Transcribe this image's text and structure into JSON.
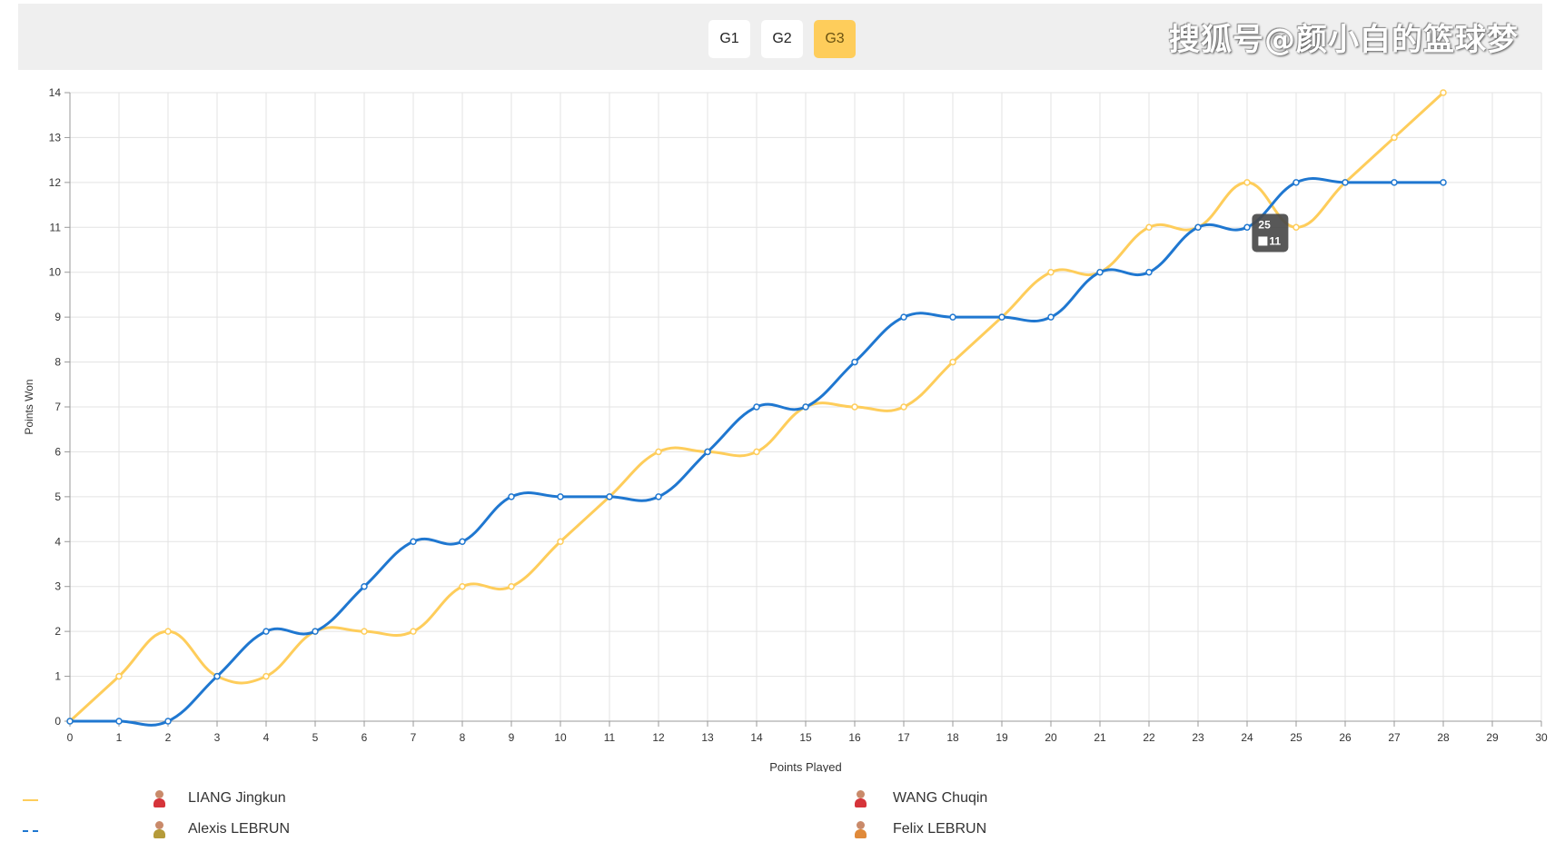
{
  "tabs": {
    "buttons": [
      {
        "label": "G1",
        "active": false
      },
      {
        "label": "G2",
        "active": false
      },
      {
        "label": "G3",
        "active": true
      }
    ]
  },
  "watermark": "搜狐号@颜小白的篮球梦",
  "chart_data": {
    "type": "line",
    "xlabel": "Points Played",
    "ylabel": "Points Won",
    "xlim": [
      0,
      30
    ],
    "ylim": [
      0,
      14
    ],
    "x_ticks": [
      0,
      1,
      2,
      3,
      4,
      5,
      6,
      7,
      8,
      9,
      10,
      11,
      12,
      13,
      14,
      15,
      16,
      17,
      18,
      19,
      20,
      21,
      22,
      23,
      24,
      25,
      26,
      27,
      28,
      29,
      30
    ],
    "y_ticks": [
      0,
      1,
      2,
      3,
      4,
      5,
      6,
      7,
      8,
      9,
      10,
      11,
      12,
      13,
      14
    ],
    "grid": true,
    "x": [
      0,
      1,
      2,
      3,
      4,
      5,
      6,
      7,
      8,
      9,
      10,
      11,
      12,
      13,
      14,
      15,
      16,
      17,
      18,
      19,
      20,
      21,
      22,
      23,
      24,
      25,
      26,
      27,
      28
    ],
    "series": [
      {
        "color": "#fecd5b",
        "values": [
          0,
          1,
          2,
          1,
          1,
          2,
          2,
          2,
          3,
          3,
          4,
          5,
          6,
          6,
          6,
          7,
          7,
          7,
          8,
          9,
          10,
          10,
          11,
          11,
          12,
          11,
          12,
          13,
          14
        ]
      },
      {
        "color": "#1f77d0",
        "values": [
          0,
          0,
          0,
          1,
          2,
          2,
          3,
          4,
          4,
          5,
          5,
          5,
          5,
          6,
          7,
          7,
          8,
          9,
          9,
          9,
          9,
          10,
          10,
          11,
          11,
          12,
          12,
          12,
          12
        ]
      }
    ],
    "tooltip": {
      "x_label": "25",
      "value_label": "11"
    }
  },
  "legend": {
    "rows": [
      {
        "color": "#fecd5b",
        "dash": "solid",
        "left": "LIANG Jingkun",
        "right": "WANG Chuqin"
      },
      {
        "color": "#1f77d0",
        "dash": "dashed",
        "left": "Alexis LEBRUN",
        "right": "Felix LEBRUN"
      }
    ]
  }
}
